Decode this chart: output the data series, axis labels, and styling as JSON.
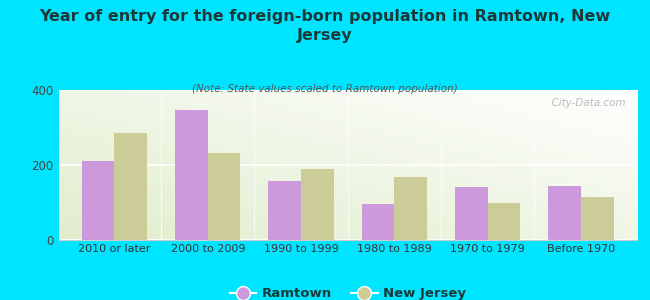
{
  "title": "Year of entry for the foreign-born population in Ramtown, New\nJersey",
  "subtitle": "(Note: State values scaled to Ramtown population)",
  "categories": [
    "2010 or later",
    "2000 to 2009",
    "1990 to 1999",
    "1980 to 1989",
    "1970 to 1979",
    "Before 1970"
  ],
  "ramtown_values": [
    210,
    348,
    158,
    95,
    142,
    145
  ],
  "nj_values": [
    285,
    232,
    190,
    168,
    100,
    115
  ],
  "ramtown_color": "#cc99dd",
  "nj_color": "#cccc99",
  "background_outer": "#00e5ff",
  "ylim": [
    0,
    400
  ],
  "yticks": [
    0,
    200,
    400
  ],
  "bar_width": 0.35,
  "legend_labels": [
    "Ramtown",
    "New Jersey"
  ],
  "watermark": "  City-Data.com"
}
